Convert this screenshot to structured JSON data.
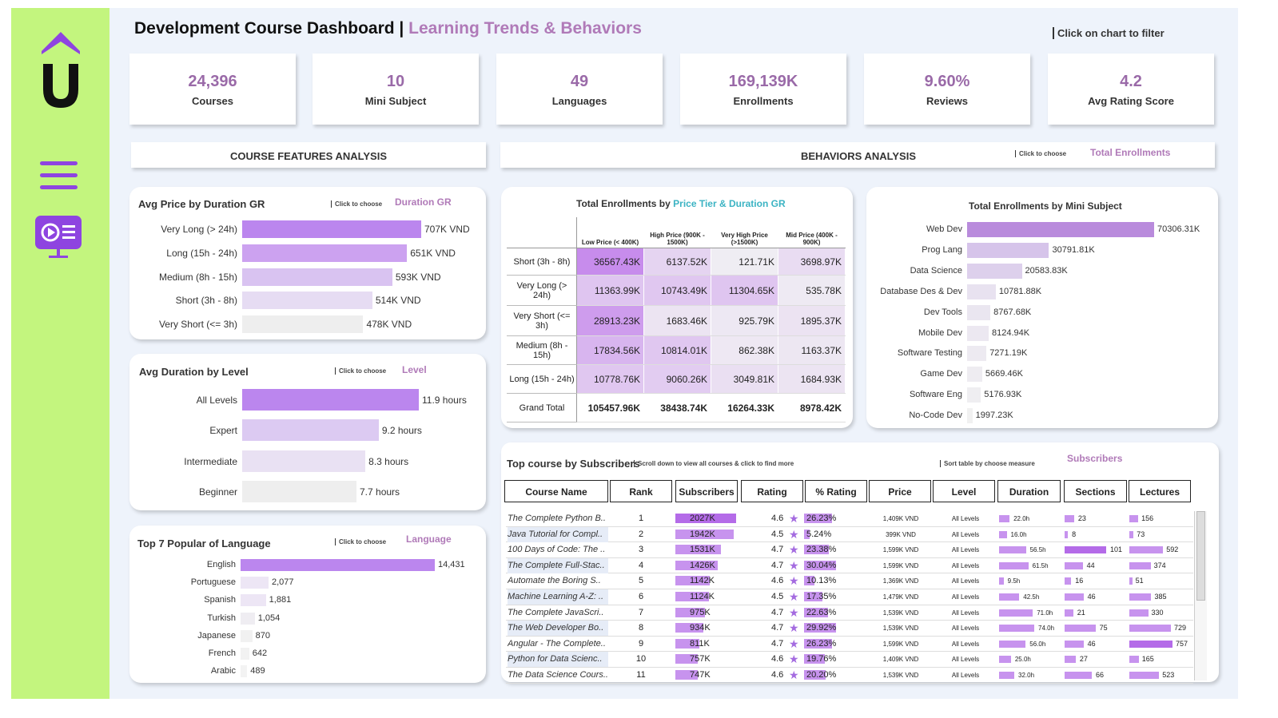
{
  "header": {
    "title": "Development Course Dashboard",
    "separator": "|",
    "subtitle": "Learning Trends & Behaviors",
    "hint": "Click on chart to filter"
  },
  "kpis": [
    {
      "value": "24,396",
      "label": "Courses"
    },
    {
      "value": "10",
      "label": "Mini Subject"
    },
    {
      "value": "49",
      "label": "Languages"
    },
    {
      "value": "169,139K",
      "label": "Enrollments"
    },
    {
      "value": "9.60%",
      "label": "Reviews"
    },
    {
      "value": "4.2",
      "label": "Avg Rating Score"
    }
  ],
  "sections": {
    "features": "COURSE FEATURES ANALYSIS",
    "behaviors": "BEHAVIORS ANALYSIS",
    "behaviors_choose": "Click to choose",
    "behaviors_measure": "Total Enrollments"
  },
  "colors": {
    "sidebar": "#c3f57e",
    "accent": "#8e44e0",
    "bar_strong": "#bb86ee",
    "bar_mid": "#d9c3f1",
    "bar_light": "#ede6f5",
    "highlight": "#b07ab8"
  },
  "icons": [
    "chevron-up-icon",
    "logo-u-icon",
    "menu-icon",
    "video-screen-icon"
  ],
  "price_by_duration": {
    "title": "Avg Price by Duration GR",
    "choose": "Click to choose",
    "measure": "Duration GR",
    "chart_data": {
      "type": "bar",
      "categories": [
        "Very Long (> 24h)",
        "Long (15h - 24h)",
        "Medium (8h - 15h)",
        "Short (3h - 8h)",
        "Very Short (<= 3h)"
      ],
      "values": [
        707,
        651,
        593,
        514,
        478
      ],
      "labels": [
        "707K VND",
        "651K VND",
        "593K VND",
        "514K VND",
        "478K VND"
      ],
      "xlim": [
        0,
        707
      ]
    }
  },
  "duration_by_level": {
    "title": "Avg Duration by Level",
    "choose": "Click to choose",
    "measure": "Level",
    "chart_data": {
      "type": "bar",
      "categories": [
        "All Levels",
        "Expert",
        "Intermediate",
        "Beginner"
      ],
      "values": [
        11.9,
        9.2,
        8.3,
        7.7
      ],
      "labels": [
        "11.9  hours",
        "9.2  hours",
        "8.3  hours",
        "7.7  hours"
      ],
      "xlim": [
        0,
        11.9
      ]
    }
  },
  "language": {
    "title": "Top 7 Popular of  Language",
    "choose": "Click to choose",
    "measure": "Language",
    "chart_data": {
      "type": "bar",
      "categories": [
        "English",
        "Portuguese",
        "Spanish",
        "Turkish",
        "Japanese",
        "French",
        "Arabic"
      ],
      "values": [
        14431,
        2077,
        1881,
        1054,
        870,
        642,
        489
      ],
      "labels": [
        "14,431",
        "2,077",
        "1,881",
        "1,054",
        "870",
        "642",
        "489"
      ],
      "xlim": [
        0,
        14431
      ]
    }
  },
  "matrix": {
    "title_prefix": "Total Enrollments by",
    "title_highlight": "Price Tier & Duration GR",
    "columns": [
      "Low Price (< 400K)",
      "High Price (900K - 1500K)",
      "Very High Price (>1500K)",
      "Mid Price (400K - 900K)"
    ],
    "rows": [
      {
        "label": "Short (3h - 8h)",
        "values": [
          "36567.43K",
          "6137.52K",
          "121.71K",
          "3698.97K"
        ],
        "nums": [
          36567.43,
          6137.52,
          121.71,
          3698.97
        ]
      },
      {
        "label": "Very Long (> 24h)",
        "values": [
          "11363.99K",
          "10743.49K",
          "11304.65K",
          "535.78K"
        ],
        "nums": [
          11363.99,
          10743.49,
          11304.65,
          535.78
        ]
      },
      {
        "label": "Very Short (<= 3h)",
        "values": [
          "28913.23K",
          "1683.46K",
          "925.79K",
          "1895.37K"
        ],
        "nums": [
          28913.23,
          1683.46,
          925.79,
          1895.37
        ]
      },
      {
        "label": "Medium (8h - 15h)",
        "values": [
          "17834.56K",
          "10814.01K",
          "862.38K",
          "1163.37K"
        ],
        "nums": [
          17834.56,
          10814.01,
          862.38,
          1163.37
        ]
      },
      {
        "label": "Long (15h - 24h)",
        "values": [
          "10778.76K",
          "9060.26K",
          "3049.81K",
          "1684.93K"
        ],
        "nums": [
          10778.76,
          9060.26,
          3049.81,
          1684.93
        ]
      }
    ],
    "total": {
      "label": "Grand Total",
      "values": [
        "105457.96K",
        "38438.74K",
        "16264.33K",
        "8978.42K"
      ]
    }
  },
  "mini_subject": {
    "title": "Total Enrollments by Mini Subject",
    "chart_data": {
      "type": "bar",
      "categories": [
        "Web Dev",
        "Prog Lang",
        "Data Science",
        "Database Des & Dev",
        "Dev Tools",
        "Mobile Dev",
        "Software Testing",
        "Game Dev",
        "Software Eng",
        "No-Code Dev"
      ],
      "values": [
        70306.31,
        30791.81,
        20583.83,
        10781.88,
        8767.68,
        8124.94,
        7271.19,
        5669.46,
        5176.93,
        1997.23
      ],
      "labels": [
        "70306.31K",
        "30791.81K",
        "20583.83K",
        "10781.88K",
        "8767.68K",
        "8124.94K",
        "7271.19K",
        "5669.46K",
        "5176.93K",
        "1997.23K"
      ],
      "xlim": [
        0,
        70306.31
      ]
    }
  },
  "top_courses": {
    "title": "Top course by Subscribers",
    "note": "Scroll down to view all courses & click to find more",
    "sort_note": "Sort table by choose measure",
    "measure": "Subscribers",
    "columns": [
      "Course Name",
      "Rank",
      "Subscribers",
      "Rating",
      "% Rating",
      "Price",
      "Level",
      "Duration",
      "Sections",
      "Lectures"
    ],
    "rows": [
      {
        "name": "The Complete Python B..",
        "rank": "1",
        "subs": "2027K",
        "subs_n": 2027,
        "rating": "4.6",
        "pct": "26.23%",
        "pct_n": 26.23,
        "price": "1,409K VND",
        "level": "All Levels",
        "dur": "22.0h",
        "dur_n": 22.0,
        "sec": "23",
        "sec_n": 23,
        "lec": "156",
        "lec_n": 156
      },
      {
        "name": "Java Tutorial for Compl..",
        "rank": "2",
        "subs": "1942K",
        "subs_n": 1942,
        "rating": "4.5",
        "pct": "5.24%",
        "pct_n": 5.24,
        "price": "399K VND",
        "level": "All Levels",
        "dur": "16.0h",
        "dur_n": 16.0,
        "sec": "8",
        "sec_n": 8,
        "lec": "73",
        "lec_n": 73
      },
      {
        "name": "100 Days of Code: The ..",
        "rank": "3",
        "subs": "1531K",
        "subs_n": 1531,
        "rating": "4.7",
        "pct": "23.38%",
        "pct_n": 23.38,
        "price": "1,599K VND",
        "level": "All Levels",
        "dur": "56.5h",
        "dur_n": 56.5,
        "sec": "101",
        "sec_n": 101,
        "lec": "592",
        "lec_n": 592
      },
      {
        "name": "The Complete Full-Stac..",
        "rank": "4",
        "subs": "1426K",
        "subs_n": 1426,
        "rating": "4.7",
        "pct": "30.04%",
        "pct_n": 30.04,
        "price": "1,599K VND",
        "level": "All Levels",
        "dur": "61.5h",
        "dur_n": 61.5,
        "sec": "44",
        "sec_n": 44,
        "lec": "374",
        "lec_n": 374
      },
      {
        "name": "Automate the Boring S..",
        "rank": "5",
        "subs": "1142K",
        "subs_n": 1142,
        "rating": "4.6",
        "pct": "10.13%",
        "pct_n": 10.13,
        "price": "1,369K VND",
        "level": "All Levels",
        "dur": "9.5h",
        "dur_n": 9.5,
        "sec": "16",
        "sec_n": 16,
        "lec": "51",
        "lec_n": 51
      },
      {
        "name": "Machine Learning A-Z: ..",
        "rank": "6",
        "subs": "1124K",
        "subs_n": 1124,
        "rating": "4.5",
        "pct": "17.35%",
        "pct_n": 17.35,
        "price": "1,479K VND",
        "level": "All Levels",
        "dur": "42.5h",
        "dur_n": 42.5,
        "sec": "46",
        "sec_n": 46,
        "lec": "385",
        "lec_n": 385
      },
      {
        "name": "The Complete JavaScri..",
        "rank": "7",
        "subs": "975K",
        "subs_n": 975,
        "rating": "4.7",
        "pct": "22.63%",
        "pct_n": 22.63,
        "price": "1,539K VND",
        "level": "All Levels",
        "dur": "71.0h",
        "dur_n": 71.0,
        "sec": "21",
        "sec_n": 21,
        "lec": "330",
        "lec_n": 330
      },
      {
        "name": "The Web Developer Bo..",
        "rank": "8",
        "subs": "934K",
        "subs_n": 934,
        "rating": "4.7",
        "pct": "29.92%",
        "pct_n": 29.92,
        "price": "1,539K VND",
        "level": "All Levels",
        "dur": "74.0h",
        "dur_n": 74.0,
        "sec": "75",
        "sec_n": 75,
        "lec": "729",
        "lec_n": 729
      },
      {
        "name": "Angular - The Complete..",
        "rank": "9",
        "subs": "811K",
        "subs_n": 811,
        "rating": "4.7",
        "pct": "26.23%",
        "pct_n": 26.23,
        "price": "1,599K VND",
        "level": "All Levels",
        "dur": "56.0h",
        "dur_n": 56.0,
        "sec": "46",
        "sec_n": 46,
        "lec": "757",
        "lec_n": 757
      },
      {
        "name": "Python for Data Scienc..",
        "rank": "10",
        "subs": "757K",
        "subs_n": 757,
        "rating": "4.6",
        "pct": "19.76%",
        "pct_n": 19.76,
        "price": "1,409K VND",
        "level": "All Levels",
        "dur": "25.0h",
        "dur_n": 25.0,
        "sec": "27",
        "sec_n": 27,
        "lec": "165",
        "lec_n": 165
      },
      {
        "name": "The Data Science Cours..",
        "rank": "11",
        "subs": "747K",
        "subs_n": 747,
        "rating": "4.6",
        "pct": "20.20%",
        "pct_n": 20.2,
        "price": "1,539K VND",
        "level": "All Levels",
        "dur": "32.0h",
        "dur_n": 32.0,
        "sec": "66",
        "sec_n": 66,
        "lec": "523",
        "lec_n": 523
      }
    ]
  }
}
